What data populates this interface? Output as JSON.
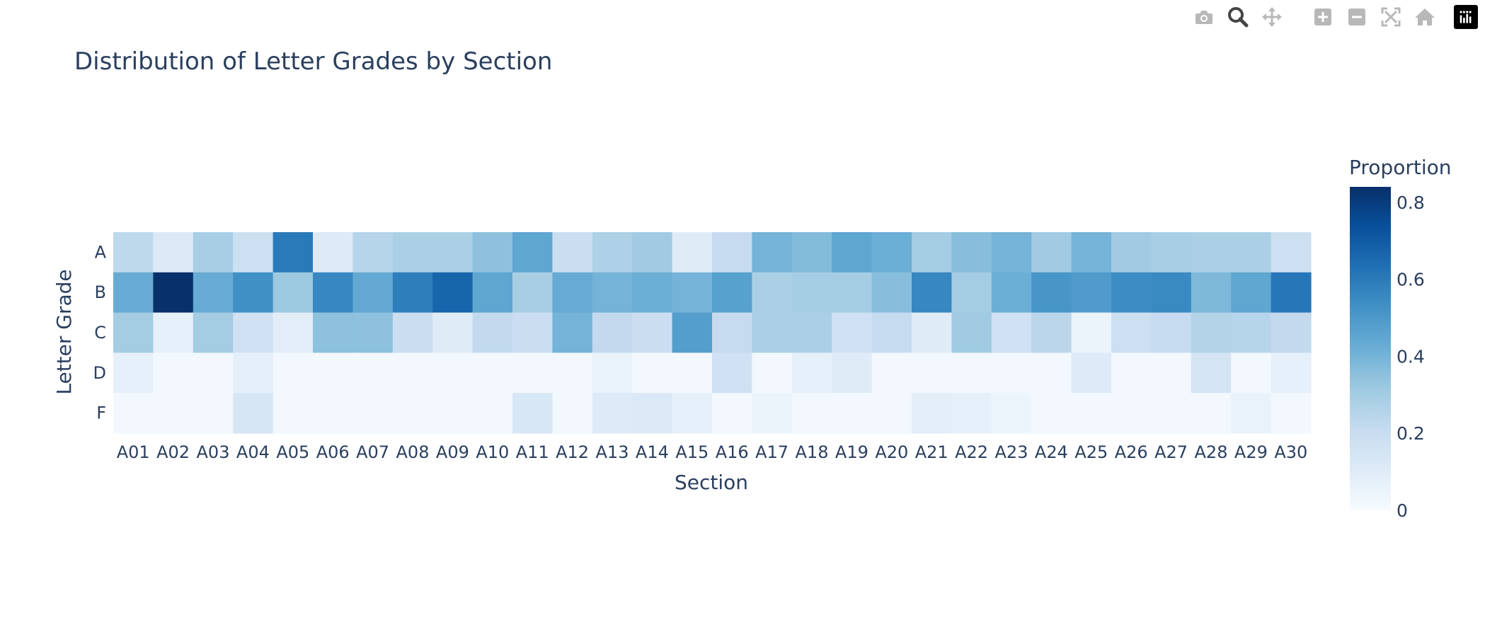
{
  "modebar": {
    "buttons": [
      {
        "name": "download-plot-button",
        "icon": "camera-icon",
        "tooltip": "Download plot as a png"
      },
      {
        "name": "zoom-button",
        "icon": "zoom-icon",
        "tooltip": "Zoom"
      },
      {
        "name": "pan-button",
        "icon": "pan-icon",
        "tooltip": "Pan"
      },
      {
        "name": "zoom-in-button",
        "icon": "plus-box-icon",
        "tooltip": "Zoom in"
      },
      {
        "name": "zoom-out-button",
        "icon": "minus-box-icon",
        "tooltip": "Zoom out"
      },
      {
        "name": "autoscale-button",
        "icon": "autoscale-icon",
        "tooltip": "Autoscale"
      },
      {
        "name": "reset-axes-button",
        "icon": "home-icon",
        "tooltip": "Reset axes"
      }
    ],
    "logo_icon": "plotly-logo-icon"
  },
  "chart_data": {
    "type": "heatmap",
    "title": "Distribution of Letter Grades by Section",
    "xlabel": "Section",
    "ylabel": "Letter Grade",
    "x": [
      "A01",
      "A02",
      "A03",
      "A04",
      "A05",
      "A06",
      "A07",
      "A08",
      "A09",
      "A10",
      "A11",
      "A12",
      "A13",
      "A14",
      "A15",
      "A16",
      "A17",
      "A18",
      "A19",
      "A20",
      "A21",
      "A22",
      "A23",
      "A24",
      "A25",
      "A26",
      "A27",
      "A28",
      "A29",
      "A30"
    ],
    "y": [
      "A",
      "B",
      "C",
      "D",
      "F"
    ],
    "z": [
      [
        0.23,
        0.12,
        0.29,
        0.18,
        0.6,
        0.11,
        0.25,
        0.28,
        0.28,
        0.35,
        0.45,
        0.19,
        0.27,
        0.31,
        0.1,
        0.21,
        0.4,
        0.37,
        0.45,
        0.42,
        0.3,
        0.36,
        0.4,
        0.31,
        0.4,
        0.31,
        0.29,
        0.28,
        0.28,
        0.18
      ],
      [
        0.43,
        0.84,
        0.43,
        0.53,
        0.32,
        0.56,
        0.44,
        0.59,
        0.67,
        0.45,
        0.29,
        0.43,
        0.4,
        0.42,
        0.4,
        0.47,
        0.28,
        0.3,
        0.3,
        0.36,
        0.56,
        0.3,
        0.42,
        0.51,
        0.49,
        0.54,
        0.55,
        0.38,
        0.45,
        0.61
      ],
      [
        0.3,
        0.07,
        0.3,
        0.17,
        0.09,
        0.35,
        0.35,
        0.19,
        0.1,
        0.22,
        0.19,
        0.4,
        0.22,
        0.19,
        0.48,
        0.21,
        0.28,
        0.28,
        0.17,
        0.21,
        0.1,
        0.31,
        0.17,
        0.24,
        0.05,
        0.18,
        0.21,
        0.26,
        0.25,
        0.22
      ],
      [
        0.07,
        0.02,
        0.02,
        0.08,
        0.02,
        0.02,
        0.02,
        0.02,
        0.02,
        0.02,
        0.02,
        0.02,
        0.06,
        0.02,
        0.02,
        0.17,
        0.02,
        0.07,
        0.1,
        0.02,
        0.02,
        0.02,
        0.02,
        0.02,
        0.11,
        0.02,
        0.02,
        0.15,
        0.02,
        0.07
      ],
      [
        0.02,
        0.02,
        0.02,
        0.14,
        0.02,
        0.02,
        0.02,
        0.02,
        0.02,
        0.02,
        0.13,
        0.02,
        0.11,
        0.12,
        0.07,
        0.02,
        0.05,
        0.02,
        0.02,
        0.02,
        0.09,
        0.07,
        0.04,
        0.02,
        0.02,
        0.02,
        0.02,
        0.02,
        0.06,
        0.02
      ]
    ],
    "zmin": 0,
    "zmax": 0.84,
    "colorscale": "Blues",
    "colors": [
      "#f7fbff",
      "#deebf7",
      "#c6dbef",
      "#9ecae1",
      "#6baed6",
      "#4292c6",
      "#2171b5",
      "#08519c",
      "#08306b"
    ],
    "colorbar": {
      "title": "Proportion",
      "ticks": [
        0,
        0.2,
        0.4,
        0.6,
        0.8
      ],
      "ticklabels": [
        "0",
        "0.2",
        "0.4",
        "0.6",
        "0.8"
      ]
    }
  }
}
